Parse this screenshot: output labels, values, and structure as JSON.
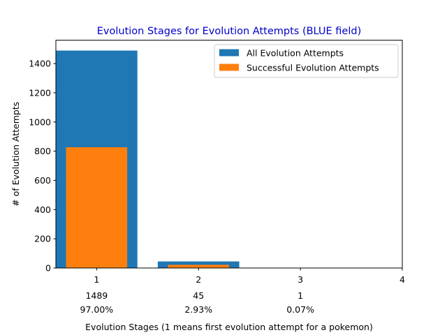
{
  "chart_data": {
    "type": "bar",
    "title": "Evolution Stages for Evolution Attempts (BLUE field)",
    "xlabel": "Evolution Stages (1 means first evolution attempt for a pokemon)",
    "ylabel": "# of Evolution Attempts",
    "x_ticks": [
      "1",
      "2",
      "3",
      "4"
    ],
    "xlim": [
      0.6,
      4.0
    ],
    "ylim": [
      0,
      1560
    ],
    "y_ticks": [
      "0",
      "200",
      "400",
      "600",
      "800",
      "1000",
      "1200",
      "1400"
    ],
    "grid": false,
    "legend_position": "top-right",
    "categories": [
      "1",
      "2",
      "3"
    ],
    "series": [
      {
        "name": "All Evolution Attempts",
        "color": "#1f77b4",
        "values": [
          1489,
          45,
          1
        ],
        "bar_width": 0.8
      },
      {
        "name": "Successful Evolution Attempts",
        "color": "#ff7f0e",
        "values": [
          827,
          22,
          0
        ],
        "bar_width": 0.6
      }
    ],
    "annotations": [
      {
        "x": "1",
        "count": "1489",
        "percent": "97.00%"
      },
      {
        "x": "2",
        "count": "45",
        "percent": "2.93%"
      },
      {
        "x": "3",
        "count": "1",
        "percent": "0.07%"
      }
    ]
  }
}
